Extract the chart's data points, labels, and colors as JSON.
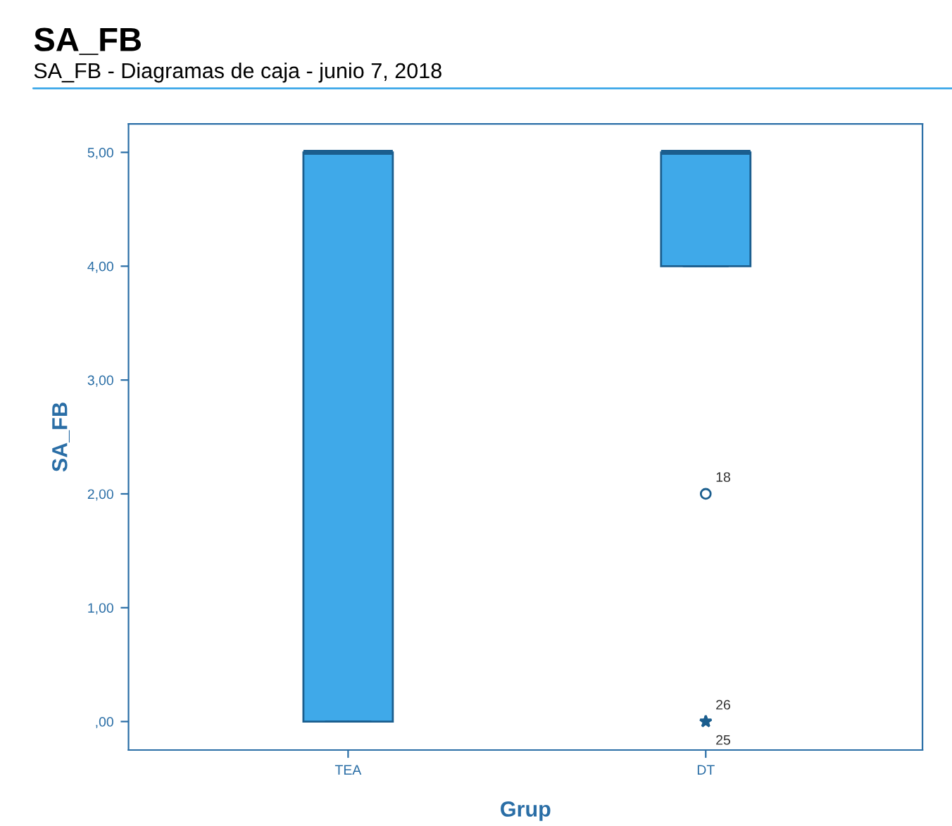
{
  "chart_data": {
    "type": "box",
    "title": "SA_FB",
    "subtitle": "SA_FB - Diagramas de caja - junio 7, 2018",
    "xlabel": "Grup",
    "ylabel": "SA_FB",
    "categories": [
      "TEA",
      "DT"
    ],
    "series": [
      {
        "color": "#3fa9e9",
        "boxes": [
          {
            "low": 0,
            "q1": 0,
            "median": 5,
            "q3": 5,
            "high": 5
          },
          {
            "low": 4,
            "q1": 4,
            "median": 5,
            "q3": 5,
            "high": 5,
            "outliers": [
              2,
              0,
              0
            ]
          }
        ]
      }
    ],
    "ylim": [
      -0.25,
      5.25
    ],
    "yticks": [
      {
        "value": 0,
        "label": ",00"
      },
      {
        "value": 1,
        "label": "1,00"
      },
      {
        "value": 2,
        "label": "2,00"
      },
      {
        "value": 3,
        "label": "3,00"
      },
      {
        "value": 4,
        "label": "4,00"
      },
      {
        "value": 5,
        "label": "5,00"
      }
    ],
    "annotations": [
      "18",
      "26",
      "25"
    ],
    "grid": false,
    "legend": false
  }
}
